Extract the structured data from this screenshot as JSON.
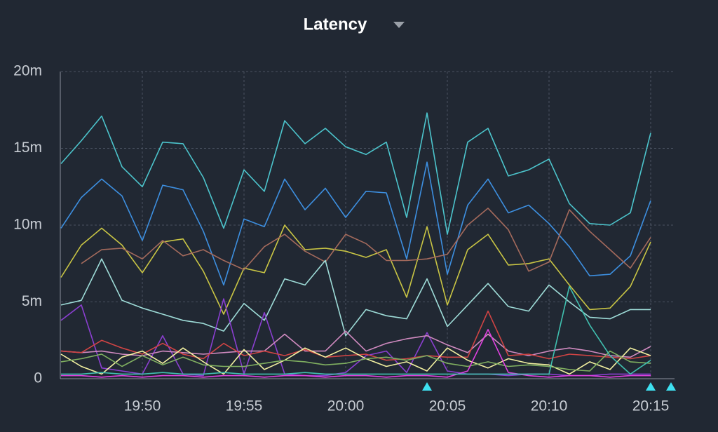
{
  "chart_data": {
    "type": "line",
    "title": "Latency",
    "x": [
      "19:46",
      "19:47",
      "19:48",
      "19:49",
      "19:50",
      "19:51",
      "19:52",
      "19:53",
      "19:54",
      "19:55",
      "19:56",
      "19:57",
      "19:58",
      "19:59",
      "20:00",
      "20:01",
      "20:02",
      "20:03",
      "20:04",
      "20:05",
      "20:06",
      "20:07",
      "20:08",
      "20:09",
      "20:10",
      "20:11",
      "20:12",
      "20:13",
      "20:14",
      "20:15"
    ],
    "xlim": [
      "19:46",
      "20:16"
    ],
    "xticks": [
      "19:50",
      "19:55",
      "20:00",
      "20:05",
      "20:10",
      "20:15"
    ],
    "ylim": [
      0,
      20
    ],
    "yticks": [
      0,
      {
        "value": 5,
        "label": "5m"
      },
      {
        "value": 10,
        "label": "10m"
      },
      {
        "value": 15,
        "label": "15m"
      },
      {
        "value": 20,
        "label": "20m"
      }
    ],
    "grid": true,
    "annotations": [
      "20:04",
      "20:15",
      "20:16"
    ],
    "annotation_color": "#3ee0f0",
    "series": [
      {
        "color": "#4cc4cc",
        "values": [
          14,
          15.5,
          17.1,
          13.8,
          12.5,
          15.4,
          15.3,
          13.1,
          9.8,
          13.6,
          12.2,
          16.8,
          15.3,
          16.3,
          15.1,
          14.6,
          15.4,
          10.5,
          17.3,
          9.4,
          15.4,
          16.3,
          13.2,
          13.6,
          14.3,
          11.4,
          10.1,
          10,
          10.8,
          16
        ]
      },
      {
        "color": "#3d8fe0",
        "values": [
          9.8,
          11.8,
          13,
          11.9,
          9,
          12.6,
          12.3,
          9.6,
          6.1,
          10.4,
          9.9,
          13,
          11,
          12.4,
          10.5,
          12.2,
          12.1,
          7.8,
          14.1,
          6.8,
          11.3,
          13,
          10.8,
          11.3,
          10.1,
          8.6,
          6.7,
          6.8,
          8,
          11.6
        ]
      },
      {
        "color": "#c9c544",
        "values": [
          6.6,
          8.7,
          9.8,
          8.7,
          6.9,
          8.9,
          9.1,
          7,
          4.2,
          7.2,
          6.9,
          10,
          8.4,
          8.5,
          8.3,
          7.9,
          8.4,
          5.3,
          9.9,
          4.8,
          8.4,
          9.4,
          7.4,
          7.5,
          7.8,
          6.1,
          4.5,
          4.6,
          6,
          8.9
        ]
      },
      {
        "color": "#a46a5c",
        "values": [
          null,
          7.5,
          8.4,
          8.5,
          7.8,
          9,
          8,
          8.4,
          7.7,
          7.1,
          8.6,
          9.4,
          8.3,
          7.6,
          9.4,
          8.8,
          7.7,
          7.7,
          7.8,
          8.1,
          10,
          11.1,
          9.7,
          7,
          7.6,
          11,
          9.6,
          8.4,
          7.2,
          9.2
        ]
      },
      {
        "color": "#9edcd8",
        "values": [
          4.8,
          5.1,
          7.8,
          5.1,
          4.6,
          4.2,
          3.8,
          3.6,
          3.1,
          4.9,
          3.8,
          6.5,
          6.1,
          7.7,
          2.8,
          4.5,
          4.1,
          3.9,
          6.5,
          3.4,
          4.8,
          6.2,
          4.7,
          4.4,
          6.1,
          5,
          4,
          3.9,
          4.5,
          4.5
        ]
      },
      {
        "color": "#8a3fd0",
        "values": [
          3.8,
          4.8,
          0.7,
          0.5,
          0.3,
          2.8,
          0.3,
          0.2,
          5.2,
          0.3,
          4.3,
          0.3,
          0.2,
          0.2,
          0.4,
          1.5,
          1.8,
          0.4,
          3,
          0.5,
          0.3,
          0.3,
          0.2,
          0.3,
          0.3,
          0.2,
          0.2,
          0.3,
          0.3,
          0.3
        ]
      },
      {
        "color": "#d08ac0",
        "values": [
          1.8,
          1.7,
          1.8,
          1.6,
          1.5,
          1.8,
          1.7,
          1.6,
          1.7,
          1.8,
          1.8,
          2.9,
          1.8,
          1.8,
          3.1,
          1.8,
          2.3,
          2.6,
          2.8,
          2.2,
          1.7,
          2.9,
          1.8,
          1.5,
          1.8,
          2,
          1.8,
          1.5,
          1.4,
          2.1
        ]
      },
      {
        "color": "#d04444",
        "values": [
          1.8,
          1.7,
          2.5,
          2,
          1.6,
          2.3,
          1.6,
          1.3,
          2.3,
          1.5,
          1.8,
          1.5,
          1.9,
          1.4,
          1.5,
          1.6,
          1.2,
          1.3,
          1.5,
          1.4,
          1.4,
          4.4,
          1.5,
          1.6,
          1.3,
          1.6,
          1.5,
          1.4,
          1.3,
          1.5
        ]
      },
      {
        "color": "#f2f0a0",
        "values": [
          1.6,
          0.8,
          0.3,
          1.4,
          1.8,
          1,
          2,
          1.1,
          0.3,
          1.9,
          0.6,
          1.2,
          2,
          1.4,
          2,
          1.3,
          0.8,
          1.1,
          0.5,
          2,
          1.2,
          0.7,
          1.3,
          1,
          0.9,
          0.3,
          1.1,
          0.6,
          2,
          1.5
        ]
      },
      {
        "color": "#80b060",
        "values": [
          1.1,
          1.3,
          1.6,
          0.8,
          1.5,
          0.9,
          1.4,
          0.9,
          0.8,
          0.8,
          1,
          1.2,
          1.1,
          0.9,
          1,
          1.3,
          1.4,
          1.2,
          1.5,
          1,
          0.8,
          1.1,
          0.8,
          0.9,
          0.8,
          0.6,
          0.5,
          1.8,
          1.1,
          1
        ]
      },
      {
        "color": "#e040e0",
        "values": [
          0.2,
          0.2,
          0.1,
          0.2,
          0.1,
          0.2,
          0.2,
          0.1,
          0.2,
          0.2,
          0.1,
          0.2,
          0.2,
          0.1,
          0.2,
          0.2,
          0.1,
          0.2,
          0.2,
          0.1,
          0.5,
          3.2,
          0.4,
          0.2,
          0.1,
          0.2,
          0.2,
          0.1,
          0.2,
          0.2
        ]
      },
      {
        "color": "#40c0b0",
        "values": [
          0.3,
          0.3,
          0.4,
          0.3,
          0.3,
          0.4,
          0.3,
          0.3,
          0.4,
          0.3,
          0.3,
          0.3,
          0.4,
          0.3,
          0.3,
          0.3,
          0.3,
          0.3,
          0.3,
          0.3,
          0.3,
          0.3,
          0.3,
          0.3,
          0.3,
          6,
          3.5,
          1.5,
          0.3,
          1.2
        ]
      }
    ]
  }
}
